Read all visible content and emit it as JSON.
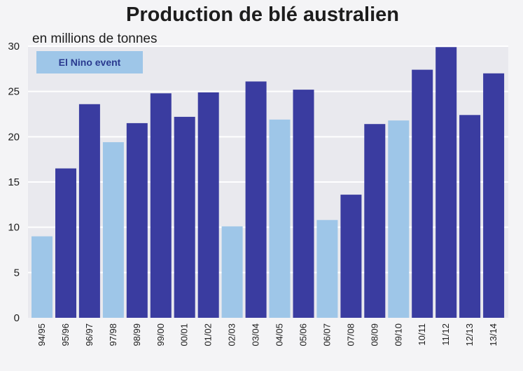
{
  "chart_data": {
    "type": "bar",
    "title": "Production de blé australien",
    "subtitle": "en millions de tonnes",
    "categories": [
      "94/95",
      "95/96",
      "96/97",
      "97/98",
      "98/99",
      "99/00",
      "00/01",
      "01/02",
      "02/03",
      "03/04",
      "04/05",
      "05/06",
      "06/07",
      "07/08",
      "08/09",
      "09/10",
      "10/11",
      "11/12",
      "12/13",
      "13/14"
    ],
    "values": [
      9.0,
      16.5,
      23.6,
      19.4,
      21.5,
      24.8,
      22.2,
      24.9,
      10.1,
      26.1,
      21.9,
      25.2,
      10.8,
      13.6,
      21.4,
      21.8,
      27.4,
      29.9,
      22.4,
      27.0
    ],
    "el_nino": [
      true,
      false,
      false,
      true,
      false,
      false,
      false,
      false,
      true,
      false,
      true,
      false,
      true,
      false,
      false,
      true,
      false,
      false,
      false,
      false
    ],
    "ylim": [
      0,
      30
    ],
    "yticks": [
      0,
      5,
      10,
      15,
      20,
      25,
      30
    ],
    "grid": true,
    "legend": {
      "label": "El Nino event",
      "placement": "top-left"
    },
    "colors": {
      "normal": "#3a3ca0",
      "el_nino": "#9ec6e8",
      "grid": "#ffffff",
      "plot_bg": "#e9e9ee"
    }
  }
}
